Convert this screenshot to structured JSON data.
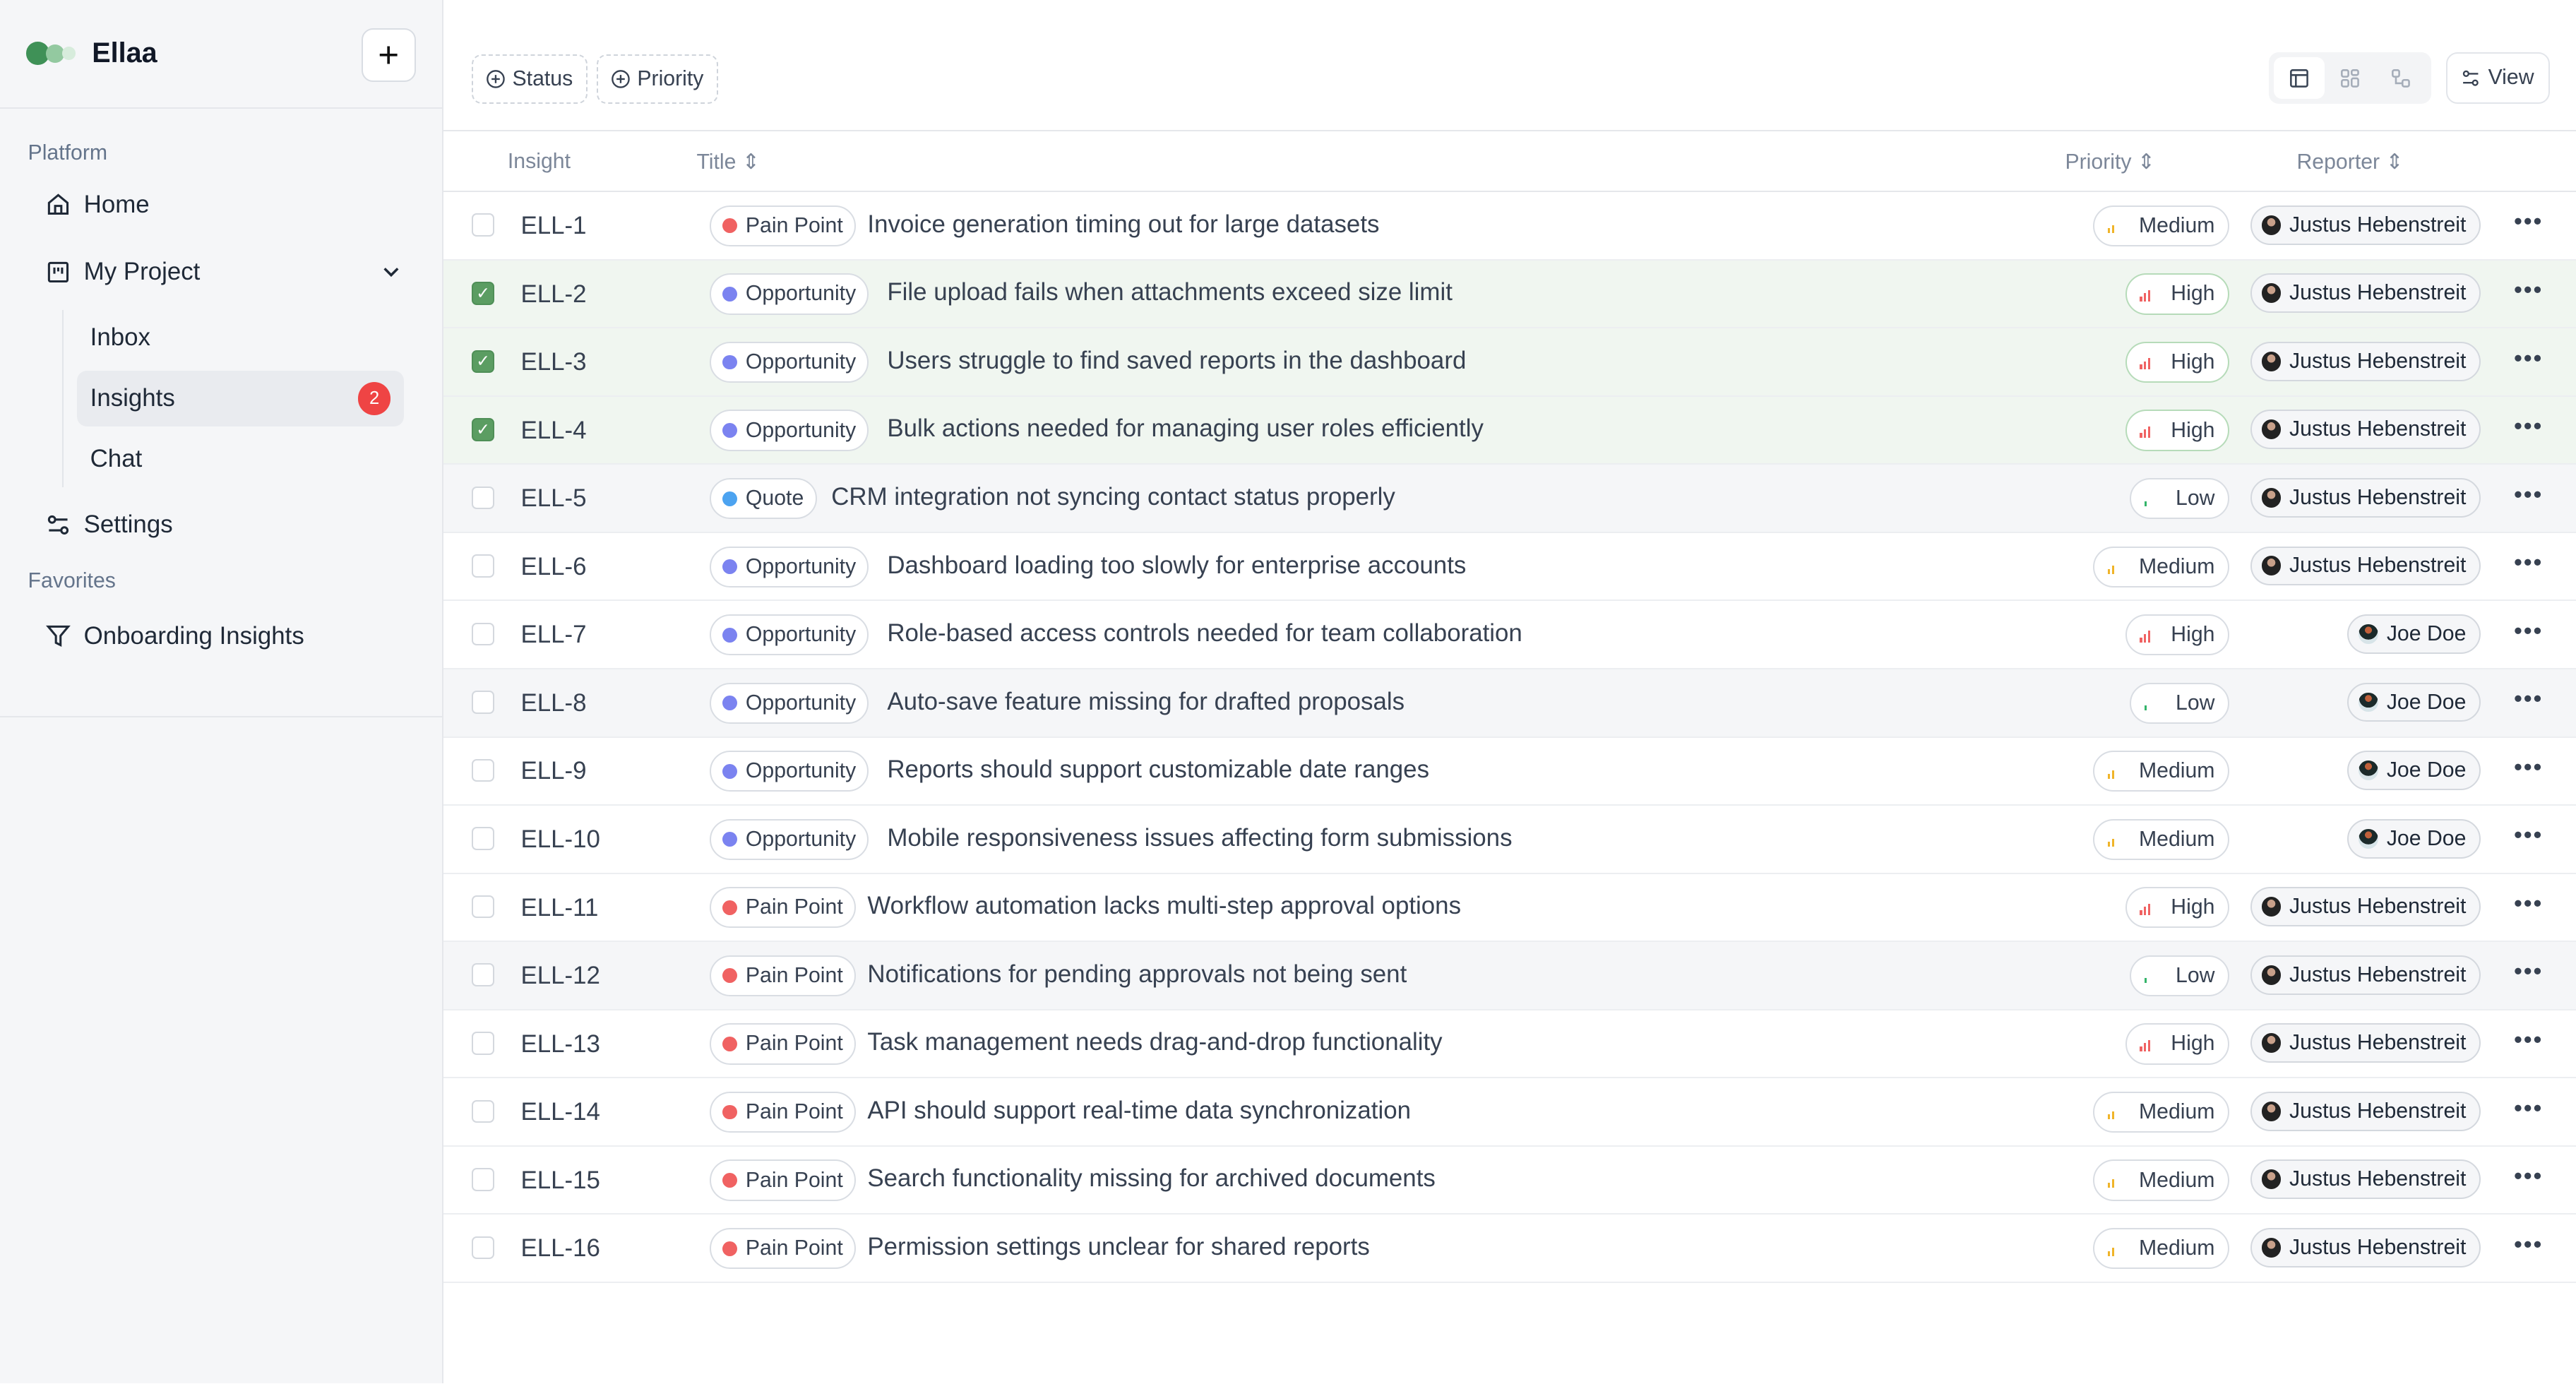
{
  "app": {
    "name": "Ellaa",
    "new_button": "+"
  },
  "sidebar": {
    "platform_label": "Platform",
    "home": "Home",
    "project": "My Project",
    "project_items": [
      {
        "label": "Inbox"
      },
      {
        "label": "Insights",
        "badge": "2",
        "active": true
      },
      {
        "label": "Chat"
      }
    ],
    "settings": "Settings",
    "favorites_label": "Favorites",
    "favorites": [
      {
        "label": "Onboarding Insights"
      }
    ]
  },
  "toolbar": {
    "filters": [
      "Status",
      "Priority"
    ],
    "view_label": "View",
    "view_modes": [
      "table-icon",
      "grid-icon",
      "flow-icon"
    ],
    "active_view": "table-icon"
  },
  "table": {
    "columns": {
      "insight": "Insight",
      "title": "Title",
      "priority": "Priority",
      "reporter": "Reporter"
    },
    "colors": {
      "Pain Point": "#f06262",
      "Opportunity": "#7b83f0",
      "Quote": "#4ca3f0",
      "High": "#f06262",
      "Medium": "#f0b429",
      "Low": "#34b46a",
      "selected_row": "#f0f6f0",
      "checkbox": "#5b9d62"
    },
    "rows": [
      {
        "id": "ELL-1",
        "type": "Pain Point",
        "title": "Invoice generation timing out for large datasets",
        "priority": "Medium",
        "reporter": "Justus Hebenstreit",
        "checked": false
      },
      {
        "id": "ELL-2",
        "type": "Opportunity",
        "title": "File upload fails when attachments exceed size limit",
        "priority": "High",
        "reporter": "Justus Hebenstreit",
        "checked": true
      },
      {
        "id": "ELL-3",
        "type": "Opportunity",
        "title": "Users struggle to find saved reports in the dashboard",
        "priority": "High",
        "reporter": "Justus Hebenstreit",
        "checked": true
      },
      {
        "id": "ELL-4",
        "type": "Opportunity",
        "title": "Bulk actions needed for managing user roles efficiently",
        "priority": "High",
        "reporter": "Justus Hebenstreit",
        "checked": true
      },
      {
        "id": "ELL-5",
        "type": "Quote",
        "title": "CRM integration not syncing contact status properly",
        "priority": "Low",
        "reporter": "Justus Hebenstreit",
        "checked": false,
        "hover": true
      },
      {
        "id": "ELL-6",
        "type": "Opportunity",
        "title": "Dashboard loading too slowly for enterprise accounts",
        "priority": "Medium",
        "reporter": "Justus Hebenstreit",
        "checked": false
      },
      {
        "id": "ELL-7",
        "type": "Opportunity",
        "title": "Role-based access controls needed for team collaboration",
        "priority": "High",
        "reporter": "Joe Doe",
        "checked": false
      },
      {
        "id": "ELL-8",
        "type": "Opportunity",
        "title": "Auto-save feature missing for drafted proposals",
        "priority": "Low",
        "reporter": "Joe Doe",
        "checked": false,
        "hover": true
      },
      {
        "id": "ELL-9",
        "type": "Opportunity",
        "title": "Reports should support customizable date ranges",
        "priority": "Medium",
        "reporter": "Joe Doe",
        "checked": false
      },
      {
        "id": "ELL-10",
        "type": "Opportunity",
        "title": "Mobile responsiveness issues affecting form submissions",
        "priority": "Medium",
        "reporter": "Joe Doe",
        "checked": false
      },
      {
        "id": "ELL-11",
        "type": "Pain Point",
        "title": "Workflow automation lacks multi-step approval options",
        "priority": "High",
        "reporter": "Justus Hebenstreit",
        "checked": false
      },
      {
        "id": "ELL-12",
        "type": "Pain Point",
        "title": "Notifications for pending approvals not being sent",
        "priority": "Low",
        "reporter": "Justus Hebenstreit",
        "checked": false,
        "hover": true
      },
      {
        "id": "ELL-13",
        "type": "Pain Point",
        "title": "Task management needs drag-and-drop functionality",
        "priority": "High",
        "reporter": "Justus Hebenstreit",
        "checked": false
      },
      {
        "id": "ELL-14",
        "type": "Pain Point",
        "title": "API should support real-time data synchronization",
        "priority": "Medium",
        "reporter": "Justus Hebenstreit",
        "checked": false
      },
      {
        "id": "ELL-15",
        "type": "Pain Point",
        "title": "Search functionality missing for archived documents",
        "priority": "Medium",
        "reporter": "Justus Hebenstreit",
        "checked": false
      },
      {
        "id": "ELL-16",
        "type": "Pain Point",
        "title": "Permission settings unclear for shared reports",
        "priority": "Medium",
        "reporter": "Justus Hebenstreit",
        "checked": false
      }
    ]
  }
}
